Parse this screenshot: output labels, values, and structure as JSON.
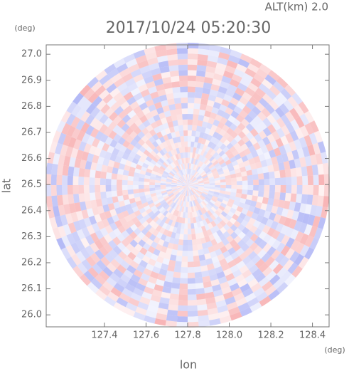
{
  "chart_data": {
    "type": "radar-ppi",
    "title": "2017/10/24 05:20:30",
    "annotation": "ALT(km) 2.0",
    "x_label": "lon",
    "y_label": "lat",
    "x_unit": "(deg)",
    "y_unit": "(deg)",
    "xlim": [
      127.12,
      128.48
    ],
    "ylim": [
      25.954,
      27.036
    ],
    "xticks": [
      127.4,
      127.6,
      127.8,
      {
        "value": 128,
        "label": "128.0"
      },
      128.2,
      128.4
    ],
    "yticks": [
      {
        "value": 26,
        "label": "26.0"
      },
      26.1,
      26.2,
      26.3,
      26.4,
      26.5,
      26.6,
      26.7,
      26.8,
      26.9,
      {
        "value": 27,
        "label": "27.0"
      }
    ],
    "colors": [
      "#f7a9ab",
      "#aab0f5"
    ]
  }
}
